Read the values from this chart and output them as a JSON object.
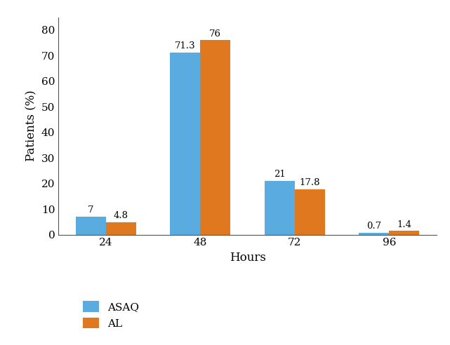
{
  "categories": [
    "24",
    "48",
    "72",
    "96"
  ],
  "asaq_values": [
    7,
    71.3,
    21,
    0.7
  ],
  "al_values": [
    4.8,
    76,
    17.8,
    1.4
  ],
  "asaq_color": "#5aabe0",
  "al_color": "#e07820",
  "ylabel": "Patients (%)",
  "xlabel": "Hours",
  "ylim": [
    0,
    85
  ],
  "yticks": [
    0,
    10,
    20,
    30,
    40,
    50,
    60,
    70,
    80
  ],
  "legend_labels": [
    "ASAQ",
    "AL"
  ],
  "bar_width": 0.32,
  "label_fontsize": 9.5,
  "axis_fontsize": 12,
  "tick_fontsize": 11,
  "legend_fontsize": 11,
  "background_color": "#ffffff"
}
